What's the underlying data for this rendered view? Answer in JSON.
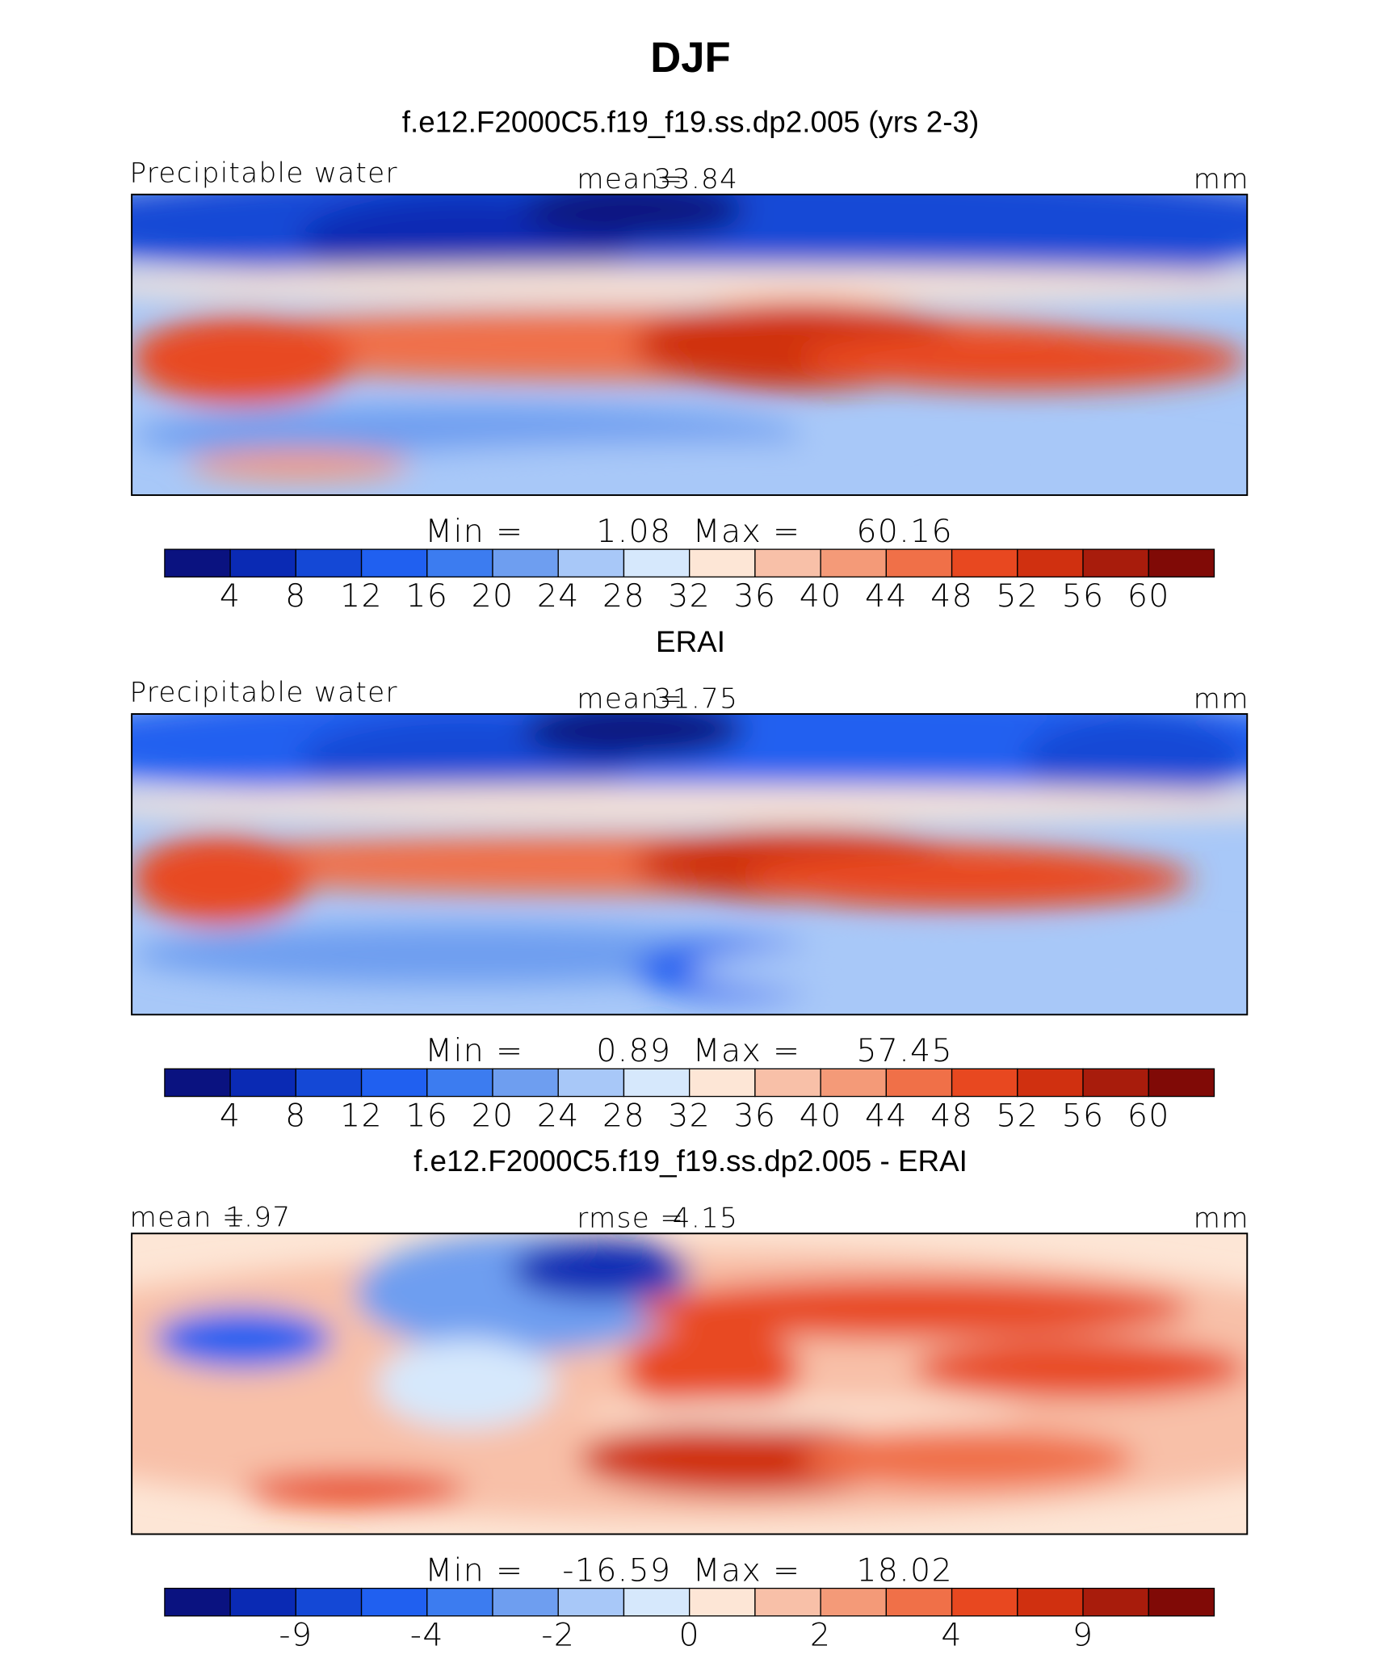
{
  "title": "DJF",
  "panels": [
    {
      "heading": "f.e12.F2000C5.f19_f19.ss.dp2.005 (yrs 2-3)",
      "top_left": "Precipitable water",
      "top_stats": [
        {
          "label": "mean=",
          "value": 33.84
        }
      ],
      "units": "mm",
      "min_label": "Min =",
      "min": 1.08,
      "max_label": "Max =",
      "max": 60.16,
      "colorbar": {
        "colors": [
          "#0a1280",
          "#0a2ab4",
          "#1448d6",
          "#2060f0",
          "#3c7cf0",
          "#6e9ef0",
          "#a8c8f8",
          "#d6e8fc",
          "#fde6d6",
          "#f8c0a8",
          "#f49a78",
          "#f07048",
          "#e84820",
          "#d03010",
          "#a81c0c",
          "#800a06"
        ],
        "ticks": [
          4,
          8,
          12,
          16,
          20,
          24,
          28,
          32,
          36,
          40,
          44,
          48,
          52,
          56,
          60
        ]
      }
    },
    {
      "heading": "ERAI",
      "top_left": "Precipitable water",
      "top_stats": [
        {
          "label": "mean=",
          "value": 31.75
        }
      ],
      "units": "mm",
      "min_label": "Min =",
      "min": 0.89,
      "max_label": "Max =",
      "max": 57.45,
      "colorbar": {
        "colors": [
          "#0a1280",
          "#0a2ab4",
          "#1448d6",
          "#2060f0",
          "#3c7cf0",
          "#6e9ef0",
          "#a8c8f8",
          "#d6e8fc",
          "#fde6d6",
          "#f8c0a8",
          "#f49a78",
          "#f07048",
          "#e84820",
          "#d03010",
          "#a81c0c",
          "#800a06"
        ],
        "ticks": [
          4,
          8,
          12,
          16,
          20,
          24,
          28,
          32,
          36,
          40,
          44,
          48,
          52,
          56,
          60
        ]
      }
    },
    {
      "heading": "f.e12.F2000C5.f19_f19.ss.dp2.005 - ERAI",
      "top_left": null,
      "top_stats": [
        {
          "label": "mean =",
          "value": 1.97
        },
        {
          "label": "rmse =",
          "value": 4.15
        }
      ],
      "units": "mm",
      "min_label": "Min =",
      "min": -16.59,
      "max_label": "Max =",
      "max": 18.02,
      "colorbar": {
        "colors": [
          "#0a1280",
          "#0a2ab4",
          "#1448d6",
          "#2060f0",
          "#3c7cf0",
          "#6e9ef0",
          "#a8c8f8",
          "#d6e8fc",
          "#fde6d6",
          "#f8c0a8",
          "#f49a78",
          "#f07048",
          "#e84820",
          "#d03010",
          "#a81c0c",
          "#800a06"
        ],
        "ticks": [
          null,
          -9,
          null,
          -4,
          null,
          -2,
          null,
          0,
          null,
          2,
          null,
          4,
          null,
          9,
          null
        ]
      }
    }
  ]
}
